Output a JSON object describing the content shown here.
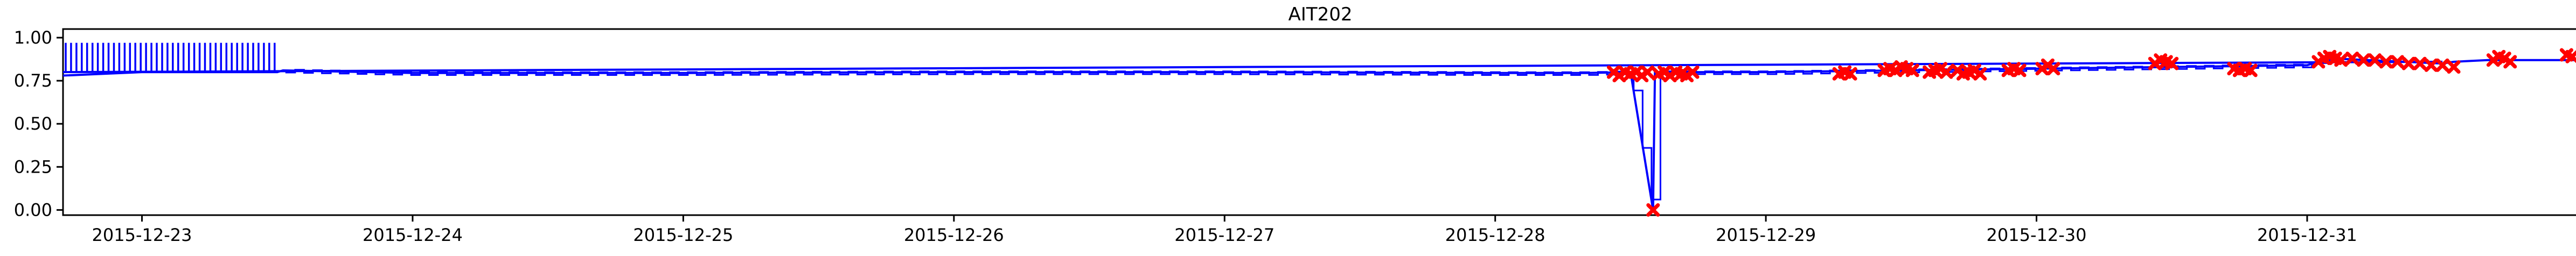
{
  "chart_data": {
    "type": "line",
    "title": "AIT202",
    "xlabel": "",
    "ylabel": "",
    "x_ticks": [
      "2015-12-23",
      "2015-12-24",
      "2015-12-25",
      "2015-12-26",
      "2015-12-27",
      "2015-12-28",
      "2015-12-29",
      "2015-12-30",
      "2015-12-31"
    ],
    "y_ticks": [
      "0.00",
      "0.25",
      "0.50",
      "0.75",
      "1.00"
    ],
    "xlim": [
      "2015-12-22 17:00",
      "2015-12-31 23:59"
    ],
    "ylim": [
      -0.03,
      1.05
    ],
    "grid": false,
    "series": [
      {
        "color": "#0000ff",
        "points": [
          [
            "2015-12-22 17:00",
            0.78
          ],
          [
            "2015-12-23 00:00",
            0.8
          ],
          [
            "2015-12-23 06:00",
            0.8
          ],
          [
            "2015-12-23 12:00",
            0.8
          ],
          [
            "2015-12-23 12:30",
            0.81
          ],
          [
            "2015-12-24 00:00",
            0.795
          ],
          [
            "2015-12-25 00:00",
            0.795
          ],
          [
            "2015-12-26 00:00",
            0.8
          ],
          [
            "2015-12-27 00:00",
            0.8
          ],
          [
            "2015-12-28 00:00",
            0.795
          ],
          [
            "2015-12-28 08:00",
            0.795
          ],
          [
            "2015-12-28 12:00",
            0.8
          ],
          [
            "2015-12-28 14:00",
            0.0
          ],
          [
            "2015-12-28 14:10",
            0.8
          ],
          [
            "2015-12-29 00:00",
            0.8
          ],
          [
            "2015-12-29 12:00",
            0.81
          ],
          [
            "2015-12-30 00:00",
            0.82
          ],
          [
            "2015-12-30 12:00",
            0.83
          ],
          [
            "2015-12-31 00:00",
            0.84
          ],
          [
            "2015-12-31 02:00",
            0.88
          ],
          [
            "2015-12-31 12:00",
            0.85
          ],
          [
            "2015-12-31 13:00",
            0.86
          ],
          [
            "2015-12-31 16:00",
            0.87
          ],
          [
            "2015-12-31 23:59",
            0.87
          ]
        ]
      }
    ],
    "early_spikes": {
      "from": "2015-12-22 17:00",
      "to": "2015-12-23 12:00",
      "low": 0.8,
      "high": 0.97,
      "count": 40
    },
    "oscillation": {
      "from": "2015-12-23 12:00",
      "to": "2015-12-31 02:00",
      "amplitude": 0.012,
      "count": 230
    },
    "overlay_line": {
      "color": "#0000ff",
      "from": [
        "2015-12-22 17:00",
        0.8
      ],
      "to": [
        "2015-12-31 12:00",
        0.86
      ]
    },
    "anomalies": {
      "color": "#ff0000",
      "marker": "x",
      "points": [
        [
          "2015-12-28 10:30",
          0.8
        ],
        [
          "2015-12-28 11:00",
          0.78
        ],
        [
          "2015-12-28 11:30",
          0.8
        ],
        [
          "2015-12-28 12:00",
          0.79
        ],
        [
          "2015-12-28 12:30",
          0.8
        ],
        [
          "2015-12-28 13:00",
          0.78
        ],
        [
          "2015-12-28 13:30",
          0.8
        ],
        [
          "2015-12-28 14:00",
          0.0
        ],
        [
          "2015-12-28 14:30",
          0.79
        ],
        [
          "2015-12-28 15:00",
          0.8
        ],
        [
          "2015-12-28 15:30",
          0.78
        ],
        [
          "2015-12-28 16:00",
          0.8
        ],
        [
          "2015-12-28 16:30",
          0.79
        ],
        [
          "2015-12-28 17:00",
          0.78
        ],
        [
          "2015-12-28 17:30",
          0.8
        ],
        [
          "2015-12-29 06:30",
          0.79
        ],
        [
          "2015-12-29 07:00",
          0.8
        ],
        [
          "2015-12-29 07:30",
          0.79
        ],
        [
          "2015-12-29 10:30",
          0.81
        ],
        [
          "2015-12-29 11:00",
          0.82
        ],
        [
          "2015-12-29 11:30",
          0.81
        ],
        [
          "2015-12-29 12:00",
          0.83
        ],
        [
          "2015-12-29 12:30",
          0.82
        ],
        [
          "2015-12-29 13:00",
          0.81
        ],
        [
          "2015-12-29 14:30",
          0.8
        ],
        [
          "2015-12-29 15:00",
          0.81
        ],
        [
          "2015-12-29 15:30",
          0.82
        ],
        [
          "2015-12-29 16:00",
          0.8
        ],
        [
          "2015-12-29 17:00",
          0.81
        ],
        [
          "2015-12-29 17:30",
          0.79
        ],
        [
          "2015-12-29 18:00",
          0.8
        ],
        [
          "2015-12-29 18:30",
          0.81
        ],
        [
          "2015-12-29 19:00",
          0.79
        ],
        [
          "2015-12-29 21:30",
          0.81
        ],
        [
          "2015-12-29 22:00",
          0.82
        ],
        [
          "2015-12-29 22:30",
          0.81
        ],
        [
          "2015-12-30 00:30",
          0.82
        ],
        [
          "2015-12-30 01:00",
          0.84
        ],
        [
          "2015-12-30 01:30",
          0.82
        ],
        [
          "2015-12-30 10:30",
          0.85
        ],
        [
          "2015-12-30 11:00",
          0.87
        ],
        [
          "2015-12-30 11:30",
          0.86
        ],
        [
          "2015-12-30 12:00",
          0.85
        ],
        [
          "2015-12-30 17:30",
          0.82
        ],
        [
          "2015-12-30 18:00",
          0.81
        ],
        [
          "2015-12-30 18:30",
          0.82
        ],
        [
          "2015-12-30 19:00",
          0.81
        ],
        [
          "2015-12-31 01:00",
          0.86
        ],
        [
          "2015-12-31 01:30",
          0.88
        ],
        [
          "2015-12-31 02:00",
          0.89
        ],
        [
          "2015-12-31 02:30",
          0.88
        ],
        [
          "2015-12-31 03:00",
          0.87
        ],
        [
          "2015-12-31 04:00",
          0.88
        ],
        [
          "2015-12-31 05:00",
          0.87
        ],
        [
          "2015-12-31 06:00",
          0.87
        ],
        [
          "2015-12-31 07:00",
          0.86
        ],
        [
          "2015-12-31 08:00",
          0.86
        ],
        [
          "2015-12-31 09:00",
          0.85
        ],
        [
          "2015-12-31 10:00",
          0.85
        ],
        [
          "2015-12-31 11:00",
          0.84
        ],
        [
          "2015-12-31 12:00",
          0.84
        ],
        [
          "2015-12-31 13:00",
          0.83
        ],
        [
          "2015-12-31 16:30",
          0.87
        ],
        [
          "2015-12-31 17:00",
          0.89
        ],
        [
          "2015-12-31 17:30",
          0.88
        ],
        [
          "2015-12-31 18:00",
          0.86
        ],
        [
          "2015-12-31 23:00",
          0.9
        ],
        [
          "2015-12-31 23:30",
          0.89
        ]
      ]
    }
  }
}
